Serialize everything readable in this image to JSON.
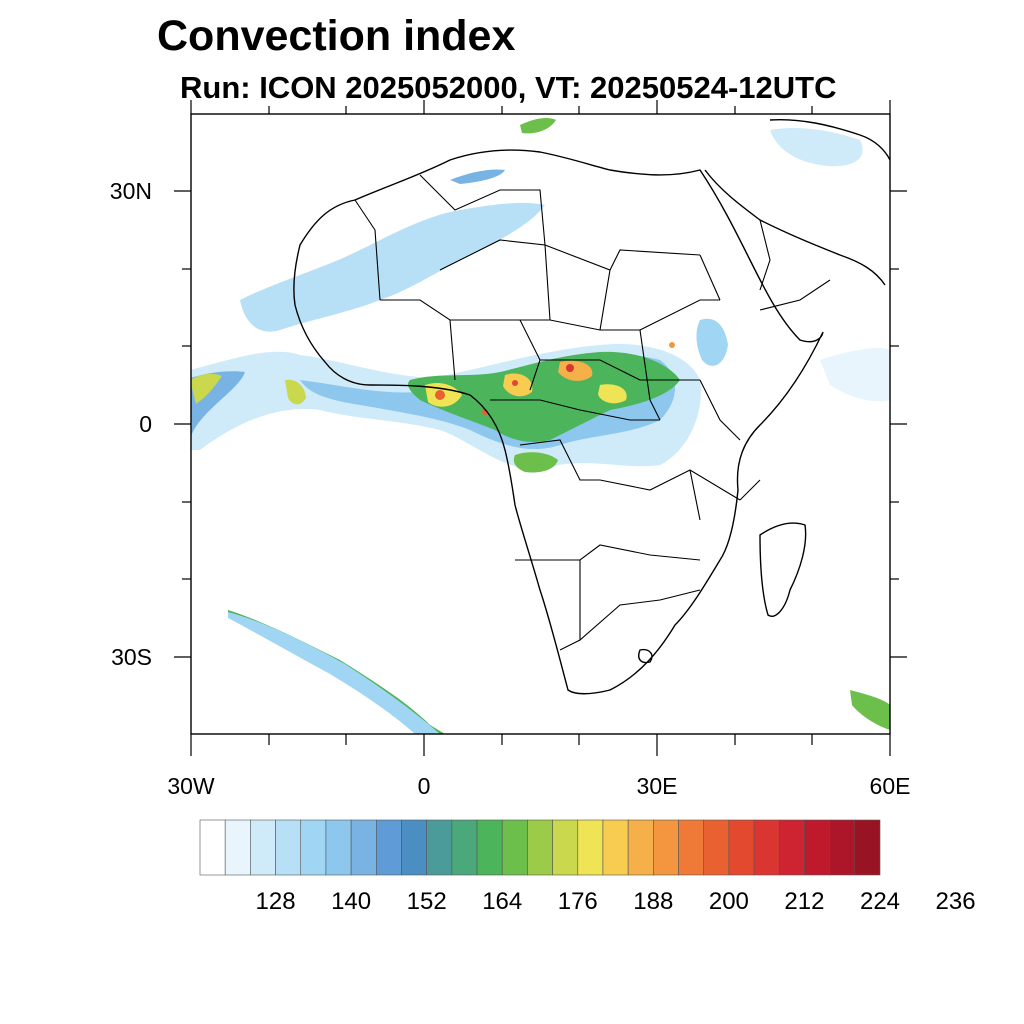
{
  "title": "Convection index",
  "subtitle": "Run: ICON 2025052000,  VT: 20250524-12UTC",
  "lat_labels": [
    "30N",
    "0",
    "30S"
  ],
  "lon_labels": [
    "30W",
    "0",
    "30E",
    "60E"
  ],
  "colorbar": {
    "colors": [
      "#ffffff",
      "#e8f5fc",
      "#cfeaf8",
      "#b7e0f6",
      "#a0d6f4",
      "#8dc7ee",
      "#78b3e4",
      "#5f9bd6",
      "#4b8ec2",
      "#4a9b9a",
      "#4aa87a",
      "#4cb45a",
      "#6cbf4a",
      "#9ccb4a",
      "#c9d84c",
      "#efe455",
      "#f8cc50",
      "#f6b04a",
      "#f49540",
      "#ef7a37",
      "#e96130",
      "#e2492e",
      "#da3530",
      "#ce2330",
      "#be1a2c",
      "#ac1628",
      "#981424"
    ],
    "tick_labels": [
      "128",
      "140",
      "152",
      "164",
      "176",
      "188",
      "200",
      "212",
      "224",
      "236"
    ]
  }
}
